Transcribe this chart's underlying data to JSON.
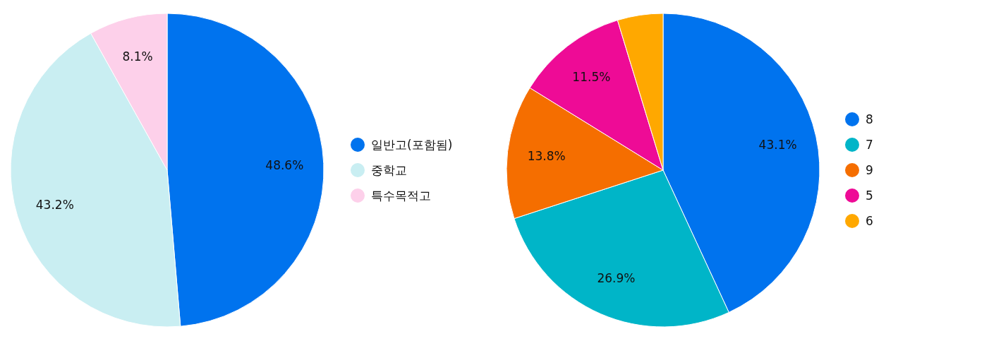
{
  "chart_data": [
    {
      "type": "pie",
      "categories": [
        "일반고(포함됨)",
        "중학교",
        "특수목적고"
      ],
      "values": [
        48.6,
        43.2,
        8.1
      ],
      "colors": [
        "#0073ee",
        "#c9eef2",
        "#fdd0ea"
      ],
      "value_labels": [
        "48.6%",
        "43.2%",
        "8.1%"
      ],
      "legend": "right"
    },
    {
      "type": "pie",
      "categories": [
        "8",
        "7",
        "9",
        "5",
        "6"
      ],
      "values": [
        43.1,
        26.9,
        13.8,
        11.5,
        4.7
      ],
      "colors": [
        "#0073ee",
        "#00b5c8",
        "#f56e00",
        "#ee0b96",
        "#ffa800"
      ],
      "value_labels": [
        "43.1%",
        "26.9%",
        "13.8%",
        "11.5%",
        null
      ],
      "legend": "right"
    }
  ]
}
